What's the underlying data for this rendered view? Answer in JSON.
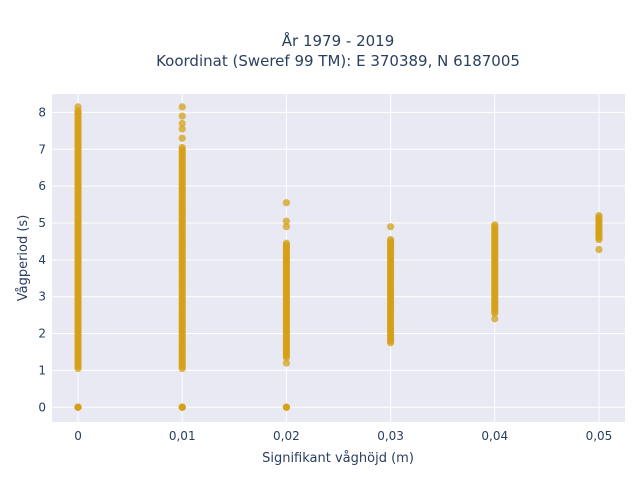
{
  "chart_data": {
    "type": "scatter",
    "title_line1": "År 1979 - 2019",
    "title_line2": "Koordinat (Sweref 99 TM): E 370389, N 6187005",
    "xlabel": "Signifikant våghöjd (m)",
    "ylabel": "Vågperiod (s)",
    "xlim": [
      -0.0025,
      0.0525
    ],
    "ylim": [
      -0.4,
      8.5
    ],
    "x_ticks": [
      0,
      0.01,
      0.02,
      0.03,
      0.04,
      0.05
    ],
    "x_tick_labels": [
      "0",
      "0,01",
      "0,02",
      "0,03",
      "0,04",
      "0,05"
    ],
    "y_ticks": [
      0,
      1,
      2,
      3,
      4,
      5,
      6,
      7,
      8
    ],
    "y_tick_labels": [
      "0",
      "1",
      "2",
      "3",
      "4",
      "5",
      "6",
      "7",
      "8"
    ],
    "grid": true,
    "marker_color": "#d4a017",
    "plot_bg": "#e8e9f2",
    "series": [
      {
        "points": [
          {
            "x": 0,
            "y": 0,
            "count": 4
          },
          {
            "x": 0,
            "y_range": [
              1.05,
              8.05
            ],
            "count": 140
          },
          {
            "x": 0,
            "y": 8.15,
            "count": 1
          },
          {
            "x": 0.01,
            "y": 0,
            "count": 4
          },
          {
            "x": 0.01,
            "y_range": [
              1.05,
              7.05
            ],
            "count": 120
          },
          {
            "x": 0.01,
            "y": 7.3,
            "count": 1
          },
          {
            "x": 0.01,
            "y": 7.55,
            "count": 1
          },
          {
            "x": 0.01,
            "y": 7.7,
            "count": 1
          },
          {
            "x": 0.01,
            "y": 7.9,
            "count": 1
          },
          {
            "x": 0.01,
            "y": 8.15,
            "count": 1
          },
          {
            "x": 0.02,
            "y": 0,
            "count": 3
          },
          {
            "x": 0.02,
            "y": 1.2,
            "count": 1
          },
          {
            "x": 0.02,
            "y_range": [
              1.35,
              4.45
            ],
            "count": 70
          },
          {
            "x": 0.02,
            "y": 4.9,
            "count": 1
          },
          {
            "x": 0.02,
            "y": 5.05,
            "count": 1
          },
          {
            "x": 0.02,
            "y": 5.55,
            "count": 1
          },
          {
            "x": 0.03,
            "y_range": [
              1.75,
              4.55
            ],
            "count": 60
          },
          {
            "x": 0.03,
            "y": 4.9,
            "count": 1
          },
          {
            "x": 0.04,
            "y": 2.4,
            "count": 1
          },
          {
            "x": 0.04,
            "y_range": [
              2.55,
              4.95
            ],
            "count": 50
          },
          {
            "x": 0.05,
            "y": 4.28,
            "count": 1
          },
          {
            "x": 0.05,
            "y_range": [
              4.55,
              5.2
            ],
            "count": 15
          }
        ]
      }
    ]
  }
}
